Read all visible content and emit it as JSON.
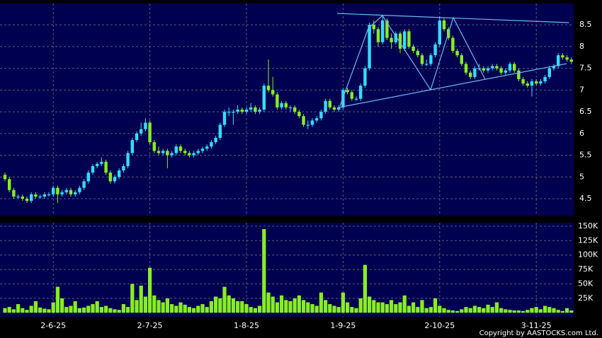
{
  "chart_data": {
    "type": "candlestick",
    "up_color": "#33ddff",
    "down_color": "#88ee22",
    "grid": true,
    "categories": [
      null,
      null,
      null,
      null,
      null,
      null,
      null,
      null,
      null,
      null,
      null,
      "2-6-25",
      null,
      null,
      null,
      null,
      null,
      null,
      null,
      null,
      null,
      null,
      null,
      null,
      null,
      null,
      null,
      null,
      null,
      null,
      null,
      null,
      null,
      "2-7-25",
      null,
      null,
      null,
      null,
      null,
      null,
      null,
      null,
      null,
      null,
      null,
      null,
      null,
      null,
      null,
      null,
      null,
      null,
      null,
      null,
      null,
      "1-8-25",
      null,
      null,
      null,
      null,
      null,
      null,
      null,
      null,
      null,
      null,
      null,
      null,
      null,
      null,
      null,
      null,
      null,
      null,
      null,
      null,
      null,
      "1-9-25",
      null,
      null,
      null,
      null,
      null,
      null,
      null,
      null,
      null,
      null,
      null,
      null,
      null,
      null,
      null,
      null,
      null,
      null,
      null,
      null,
      null,
      "2-10-25",
      null,
      null,
      null,
      null,
      null,
      null,
      null,
      null,
      null,
      null,
      null,
      null,
      null,
      null,
      null,
      null,
      null,
      null,
      null,
      null,
      null,
      "3-11-25",
      null,
      null,
      null,
      null,
      null,
      null,
      null,
      null
    ],
    "candles": [
      [
        5.05,
        5.1,
        4.9,
        4.95
      ],
      [
        4.95,
        5.0,
        4.65,
        4.7
      ],
      [
        4.7,
        4.75,
        4.5,
        4.55
      ],
      [
        4.55,
        4.6,
        4.5,
        4.55
      ],
      [
        4.55,
        4.6,
        4.45,
        4.5
      ],
      [
        4.5,
        4.55,
        4.4,
        4.45
      ],
      [
        4.45,
        4.65,
        4.4,
        4.6
      ],
      [
        4.6,
        4.65,
        4.5,
        4.55
      ],
      [
        4.55,
        4.6,
        4.5,
        4.55
      ],
      [
        4.55,
        4.65,
        4.5,
        4.6
      ],
      [
        4.6,
        4.65,
        4.55,
        4.6
      ],
      [
        4.6,
        4.8,
        4.55,
        4.75
      ],
      [
        4.75,
        4.8,
        4.4,
        4.6
      ],
      [
        4.6,
        4.7,
        4.55,
        4.65
      ],
      [
        4.65,
        4.75,
        4.6,
        4.7
      ],
      [
        4.7,
        4.75,
        4.55,
        4.6
      ],
      [
        4.6,
        4.7,
        4.55,
        4.65
      ],
      [
        4.65,
        4.8,
        4.6,
        4.75
      ],
      [
        4.75,
        4.95,
        4.7,
        4.9
      ],
      [
        4.9,
        5.15,
        4.85,
        5.1
      ],
      [
        5.1,
        5.3,
        5.05,
        5.25
      ],
      [
        5.25,
        5.35,
        5.2,
        5.3
      ],
      [
        5.3,
        5.45,
        5.25,
        5.35
      ],
      [
        5.35,
        5.4,
        5.05,
        5.1
      ],
      [
        5.1,
        5.15,
        4.85,
        4.9
      ],
      [
        4.9,
        5.05,
        4.85,
        5.0
      ],
      [
        5.0,
        5.2,
        4.95,
        5.15
      ],
      [
        5.15,
        5.3,
        5.1,
        5.25
      ],
      [
        5.25,
        5.6,
        5.2,
        5.55
      ],
      [
        5.55,
        5.9,
        5.5,
        5.85
      ],
      [
        5.85,
        6.05,
        5.8,
        6.0
      ],
      [
        6.0,
        6.25,
        5.95,
        6.1
      ],
      [
        6.1,
        6.35,
        6.05,
        6.25
      ],
      [
        6.25,
        6.3,
        5.75,
        5.8
      ],
      [
        5.8,
        5.85,
        5.55,
        5.6
      ],
      [
        5.6,
        5.7,
        5.5,
        5.55
      ],
      [
        5.55,
        5.65,
        5.5,
        5.6
      ],
      [
        5.6,
        5.65,
        5.2,
        5.5
      ],
      [
        5.5,
        5.6,
        5.45,
        5.55
      ],
      [
        5.55,
        5.75,
        5.5,
        5.7
      ],
      [
        5.7,
        5.75,
        5.55,
        5.6
      ],
      [
        5.6,
        5.65,
        5.5,
        5.55
      ],
      [
        5.55,
        5.6,
        5.45,
        5.5
      ],
      [
        5.5,
        5.6,
        5.45,
        5.55
      ],
      [
        5.55,
        5.65,
        5.5,
        5.6
      ],
      [
        5.6,
        5.7,
        5.55,
        5.65
      ],
      [
        5.65,
        5.75,
        5.6,
        5.7
      ],
      [
        5.7,
        5.85,
        5.65,
        5.8
      ],
      [
        5.8,
        5.95,
        5.75,
        5.9
      ],
      [
        5.9,
        6.25,
        5.85,
        6.2
      ],
      [
        6.2,
        6.55,
        6.15,
        6.5
      ],
      [
        6.5,
        6.6,
        6.4,
        6.5
      ],
      [
        6.5,
        6.55,
        6.2,
        6.5
      ],
      [
        6.5,
        6.65,
        6.45,
        6.55
      ],
      [
        6.55,
        6.6,
        6.45,
        6.5
      ],
      [
        6.5,
        6.6,
        6.45,
        6.55
      ],
      [
        6.55,
        6.7,
        6.5,
        6.6
      ],
      [
        6.6,
        6.65,
        6.45,
        6.5
      ],
      [
        6.5,
        6.6,
        6.45,
        6.55
      ],
      [
        6.55,
        7.15,
        6.5,
        7.1
      ],
      [
        7.1,
        7.7,
        6.95,
        7.0
      ],
      [
        7.0,
        7.3,
        6.85,
        6.9
      ],
      [
        6.9,
        6.95,
        6.55,
        6.6
      ],
      [
        6.6,
        6.75,
        6.55,
        6.7
      ],
      [
        6.7,
        6.75,
        6.55,
        6.6
      ],
      [
        6.6,
        6.65,
        6.5,
        6.6
      ],
      [
        6.6,
        6.65,
        6.45,
        6.5
      ],
      [
        6.5,
        6.55,
        6.35,
        6.4
      ],
      [
        6.4,
        6.45,
        6.15,
        6.2
      ],
      [
        6.2,
        6.3,
        6.1,
        6.2
      ],
      [
        6.2,
        6.35,
        6.15,
        6.3
      ],
      [
        6.3,
        6.4,
        6.25,
        6.35
      ],
      [
        6.35,
        6.55,
        6.3,
        6.5
      ],
      [
        6.5,
        6.8,
        6.45,
        6.75
      ],
      [
        6.75,
        6.8,
        6.55,
        6.6
      ],
      [
        6.6,
        6.65,
        6.5,
        6.55
      ],
      [
        6.55,
        6.65,
        6.5,
        6.6
      ],
      [
        6.6,
        7.05,
        6.55,
        7.0
      ],
      [
        7.0,
        7.05,
        6.9,
        6.95
      ],
      [
        6.95,
        7.0,
        6.75,
        6.8
      ],
      [
        6.8,
        6.85,
        6.75,
        6.8
      ],
      [
        6.8,
        7.15,
        6.75,
        7.1
      ],
      [
        7.1,
        7.55,
        7.05,
        7.5
      ],
      [
        7.5,
        8.55,
        7.45,
        8.5
      ],
      [
        8.5,
        8.6,
        8.3,
        8.4
      ],
      [
        8.4,
        8.45,
        8.0,
        8.1
      ],
      [
        8.1,
        8.7,
        8.05,
        8.6
      ],
      [
        8.6,
        8.65,
        8.15,
        8.2
      ],
      [
        8.2,
        8.3,
        7.95,
        8.1
      ],
      [
        8.1,
        8.35,
        8.05,
        8.3
      ],
      [
        8.3,
        8.35,
        7.85,
        7.95
      ],
      [
        7.95,
        8.4,
        7.9,
        8.35
      ],
      [
        8.35,
        8.4,
        7.95,
        8.0
      ],
      [
        8.0,
        8.05,
        7.85,
        7.9
      ],
      [
        7.9,
        7.95,
        7.75,
        7.8
      ],
      [
        7.8,
        7.85,
        7.55,
        7.6
      ],
      [
        7.6,
        7.7,
        7.55,
        7.6
      ],
      [
        7.6,
        7.85,
        7.55,
        7.8
      ],
      [
        7.8,
        8.1,
        7.75,
        8.05
      ],
      [
        8.05,
        8.7,
        8.0,
        8.6
      ],
      [
        8.6,
        8.65,
        8.35,
        8.4
      ],
      [
        8.4,
        8.45,
        8.15,
        8.2
      ],
      [
        8.2,
        8.25,
        7.85,
        7.9
      ],
      [
        7.9,
        7.95,
        7.75,
        7.8
      ],
      [
        7.8,
        7.85,
        7.55,
        7.6
      ],
      [
        7.6,
        7.65,
        7.35,
        7.4
      ],
      [
        7.4,
        7.45,
        7.25,
        7.3
      ],
      [
        7.3,
        7.55,
        7.25,
        7.5
      ],
      [
        7.5,
        7.6,
        7.45,
        7.5
      ],
      [
        7.5,
        7.55,
        7.4,
        7.45
      ],
      [
        7.45,
        7.55,
        7.4,
        7.5
      ],
      [
        7.5,
        7.6,
        7.45,
        7.55
      ],
      [
        7.55,
        7.6,
        7.45,
        7.5
      ],
      [
        7.5,
        7.55,
        7.35,
        7.4
      ],
      [
        7.4,
        7.5,
        7.35,
        7.45
      ],
      [
        7.45,
        7.65,
        7.4,
        7.6
      ],
      [
        7.6,
        7.65,
        7.4,
        7.45
      ],
      [
        7.45,
        7.5,
        7.2,
        7.25
      ],
      [
        7.25,
        7.3,
        7.1,
        7.15
      ],
      [
        7.15,
        7.2,
        7.05,
        7.1
      ],
      [
        7.1,
        7.25,
        6.85,
        7.2
      ],
      [
        7.2,
        7.25,
        7.1,
        7.15
      ],
      [
        7.15,
        7.25,
        7.1,
        7.2
      ],
      [
        7.2,
        7.35,
        7.15,
        7.3
      ],
      [
        7.3,
        7.55,
        7.25,
        7.5
      ],
      [
        7.5,
        7.6,
        7.45,
        7.55
      ],
      [
        7.55,
        7.85,
        7.5,
        7.8
      ],
      [
        7.8,
        7.85,
        7.7,
        7.75
      ],
      [
        7.75,
        7.8,
        7.65,
        7.7
      ],
      [
        7.7,
        7.75,
        7.6,
        7.65
      ]
    ],
    "ylim": [
      4.11,
      8.99
    ],
    "yticks": [
      4.5,
      5,
      5.5,
      6,
      6.5,
      7,
      7.5,
      8,
      8.5
    ],
    "volume": {
      "color": "#88ee22",
      "values": [
        8000,
        10000,
        6000,
        15000,
        8000,
        5000,
        12000,
        20000,
        9000,
        7000,
        6000,
        18000,
        45000,
        25000,
        10000,
        12000,
        20000,
        8000,
        9000,
        12000,
        15000,
        20000,
        10000,
        12000,
        8000,
        6000,
        5000,
        15000,
        10000,
        50000,
        22000,
        47000,
        28000,
        78000,
        30000,
        22000,
        18000,
        25000,
        15000,
        12000,
        18000,
        14000,
        10000,
        8000,
        12000,
        15000,
        10000,
        20000,
        28000,
        25000,
        45000,
        30000,
        25000,
        20000,
        20000,
        15000,
        10000,
        8000,
        12000,
        145000,
        35000,
        28000,
        18000,
        30000,
        22000,
        20000,
        25000,
        30000,
        22000,
        18000,
        15000,
        12000,
        35000,
        22000,
        15000,
        12000,
        10000,
        35000,
        18000,
        10000,
        8000,
        25000,
        83000,
        28000,
        22000,
        18000,
        18000,
        15000,
        22000,
        15000,
        18000,
        30000,
        12000,
        18000,
        10000,
        22000,
        8000,
        10000,
        25000,
        12000,
        8000,
        5000,
        4000,
        3000,
        6000,
        10000,
        8000,
        12000,
        10000,
        8000,
        14000,
        10000,
        18000,
        8000,
        6000,
        5000,
        4000,
        4000,
        3000,
        5000,
        8000,
        10000,
        6000,
        12000,
        10000,
        8000,
        5000,
        3000,
        8000,
        4000
      ],
      "ylim": [
        -7000,
        156000
      ],
      "yticks": [
        {
          "value": 25000,
          "label": "25K"
        },
        {
          "value": 50000,
          "label": "50K"
        },
        {
          "value": 75000,
          "label": "75K"
        },
        {
          "value": 100000,
          "label": "100K"
        },
        {
          "value": 125000,
          "label": "125K"
        },
        {
          "value": 150000,
          "label": "150K"
        }
      ]
    },
    "copyright": "Copyright by AASTOCKS.com Ltd."
  }
}
